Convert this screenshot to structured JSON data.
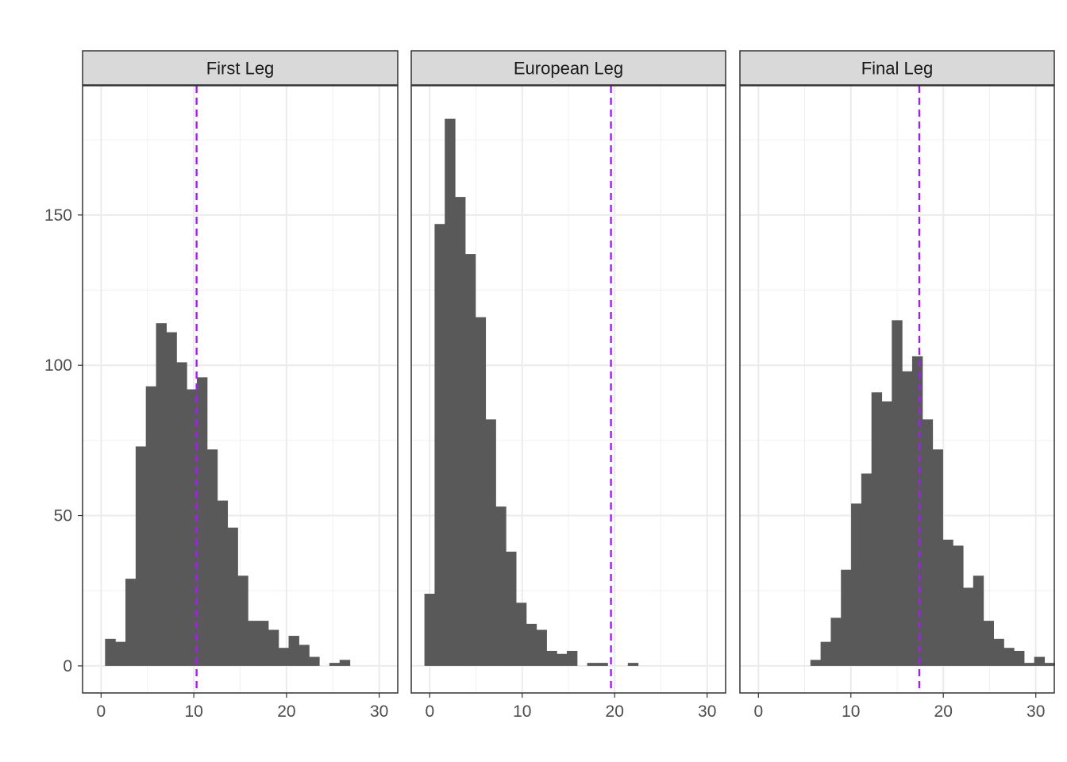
{
  "chart_data": {
    "type": "bar",
    "layout": "faceted histogram",
    "bin_width": 1.15,
    "xlim": [
      -2,
      32
    ],
    "ylim": [
      -9,
      193
    ],
    "x_ticks": [
      0,
      10,
      20,
      30
    ],
    "y_ticks": [
      0,
      50,
      100,
      150
    ],
    "bar_color": "#595959",
    "vline_color": "#a020f0",
    "grid": true,
    "facets": [
      {
        "title": "First Leg",
        "vline": 10.3,
        "bins": [
          {
            "x": 1.0,
            "count": 9
          },
          {
            "x": 2.1,
            "count": 8
          },
          {
            "x": 3.2,
            "count": 29
          },
          {
            "x": 4.3,
            "count": 73
          },
          {
            "x": 5.4,
            "count": 93
          },
          {
            "x": 6.5,
            "count": 114
          },
          {
            "x": 7.6,
            "count": 111
          },
          {
            "x": 8.7,
            "count": 101
          },
          {
            "x": 9.8,
            "count": 92
          },
          {
            "x": 10.9,
            "count": 96
          },
          {
            "x": 12.0,
            "count": 72
          },
          {
            "x": 13.1,
            "count": 55
          },
          {
            "x": 14.2,
            "count": 46
          },
          {
            "x": 15.3,
            "count": 30
          },
          {
            "x": 16.4,
            "count": 15
          },
          {
            "x": 17.5,
            "count": 15
          },
          {
            "x": 18.6,
            "count": 12
          },
          {
            "x": 19.7,
            "count": 6
          },
          {
            "x": 20.8,
            "count": 10
          },
          {
            "x": 21.9,
            "count": 7
          },
          {
            "x": 23.0,
            "count": 3
          },
          {
            "x": 24.1,
            "count": 0
          },
          {
            "x": 25.2,
            "count": 1
          },
          {
            "x": 26.3,
            "count": 2
          }
        ]
      },
      {
        "title": "European Leg",
        "vline": 19.6,
        "bins": [
          {
            "x": 0.0,
            "count": 24
          },
          {
            "x": 1.1,
            "count": 147
          },
          {
            "x": 2.2,
            "count": 182
          },
          {
            "x": 3.3,
            "count": 156
          },
          {
            "x": 4.4,
            "count": 137
          },
          {
            "x": 5.5,
            "count": 116
          },
          {
            "x": 6.6,
            "count": 82
          },
          {
            "x": 7.7,
            "count": 53
          },
          {
            "x": 8.8,
            "count": 38
          },
          {
            "x": 9.9,
            "count": 21
          },
          {
            "x": 11.0,
            "count": 14
          },
          {
            "x": 12.1,
            "count": 12
          },
          {
            "x": 13.2,
            "count": 5
          },
          {
            "x": 14.3,
            "count": 4
          },
          {
            "x": 15.4,
            "count": 5
          },
          {
            "x": 16.5,
            "count": 0
          },
          {
            "x": 17.6,
            "count": 1
          },
          {
            "x": 18.7,
            "count": 1
          },
          {
            "x": 19.8,
            "count": 0
          },
          {
            "x": 20.9,
            "count": 0
          },
          {
            "x": 22.0,
            "count": 1
          }
        ]
      },
      {
        "title": "Final Leg",
        "vline": 17.4,
        "bins": [
          {
            "x": 6.2,
            "count": 2
          },
          {
            "x": 7.3,
            "count": 8
          },
          {
            "x": 8.4,
            "count": 16
          },
          {
            "x": 9.5,
            "count": 32
          },
          {
            "x": 10.6,
            "count": 54
          },
          {
            "x": 11.7,
            "count": 64
          },
          {
            "x": 12.8,
            "count": 91
          },
          {
            "x": 13.9,
            "count": 88
          },
          {
            "x": 15.0,
            "count": 115
          },
          {
            "x": 16.1,
            "count": 98
          },
          {
            "x": 17.2,
            "count": 103
          },
          {
            "x": 18.3,
            "count": 82
          },
          {
            "x": 19.4,
            "count": 72
          },
          {
            "x": 20.5,
            "count": 42
          },
          {
            "x": 21.6,
            "count": 40
          },
          {
            "x": 22.7,
            "count": 26
          },
          {
            "x": 23.8,
            "count": 30
          },
          {
            "x": 24.9,
            "count": 15
          },
          {
            "x": 26.0,
            "count": 9
          },
          {
            "x": 27.1,
            "count": 6
          },
          {
            "x": 28.2,
            "count": 5
          },
          {
            "x": 29.3,
            "count": 1
          },
          {
            "x": 30.4,
            "count": 3
          },
          {
            "x": 31.5,
            "count": 1
          }
        ]
      }
    ]
  }
}
